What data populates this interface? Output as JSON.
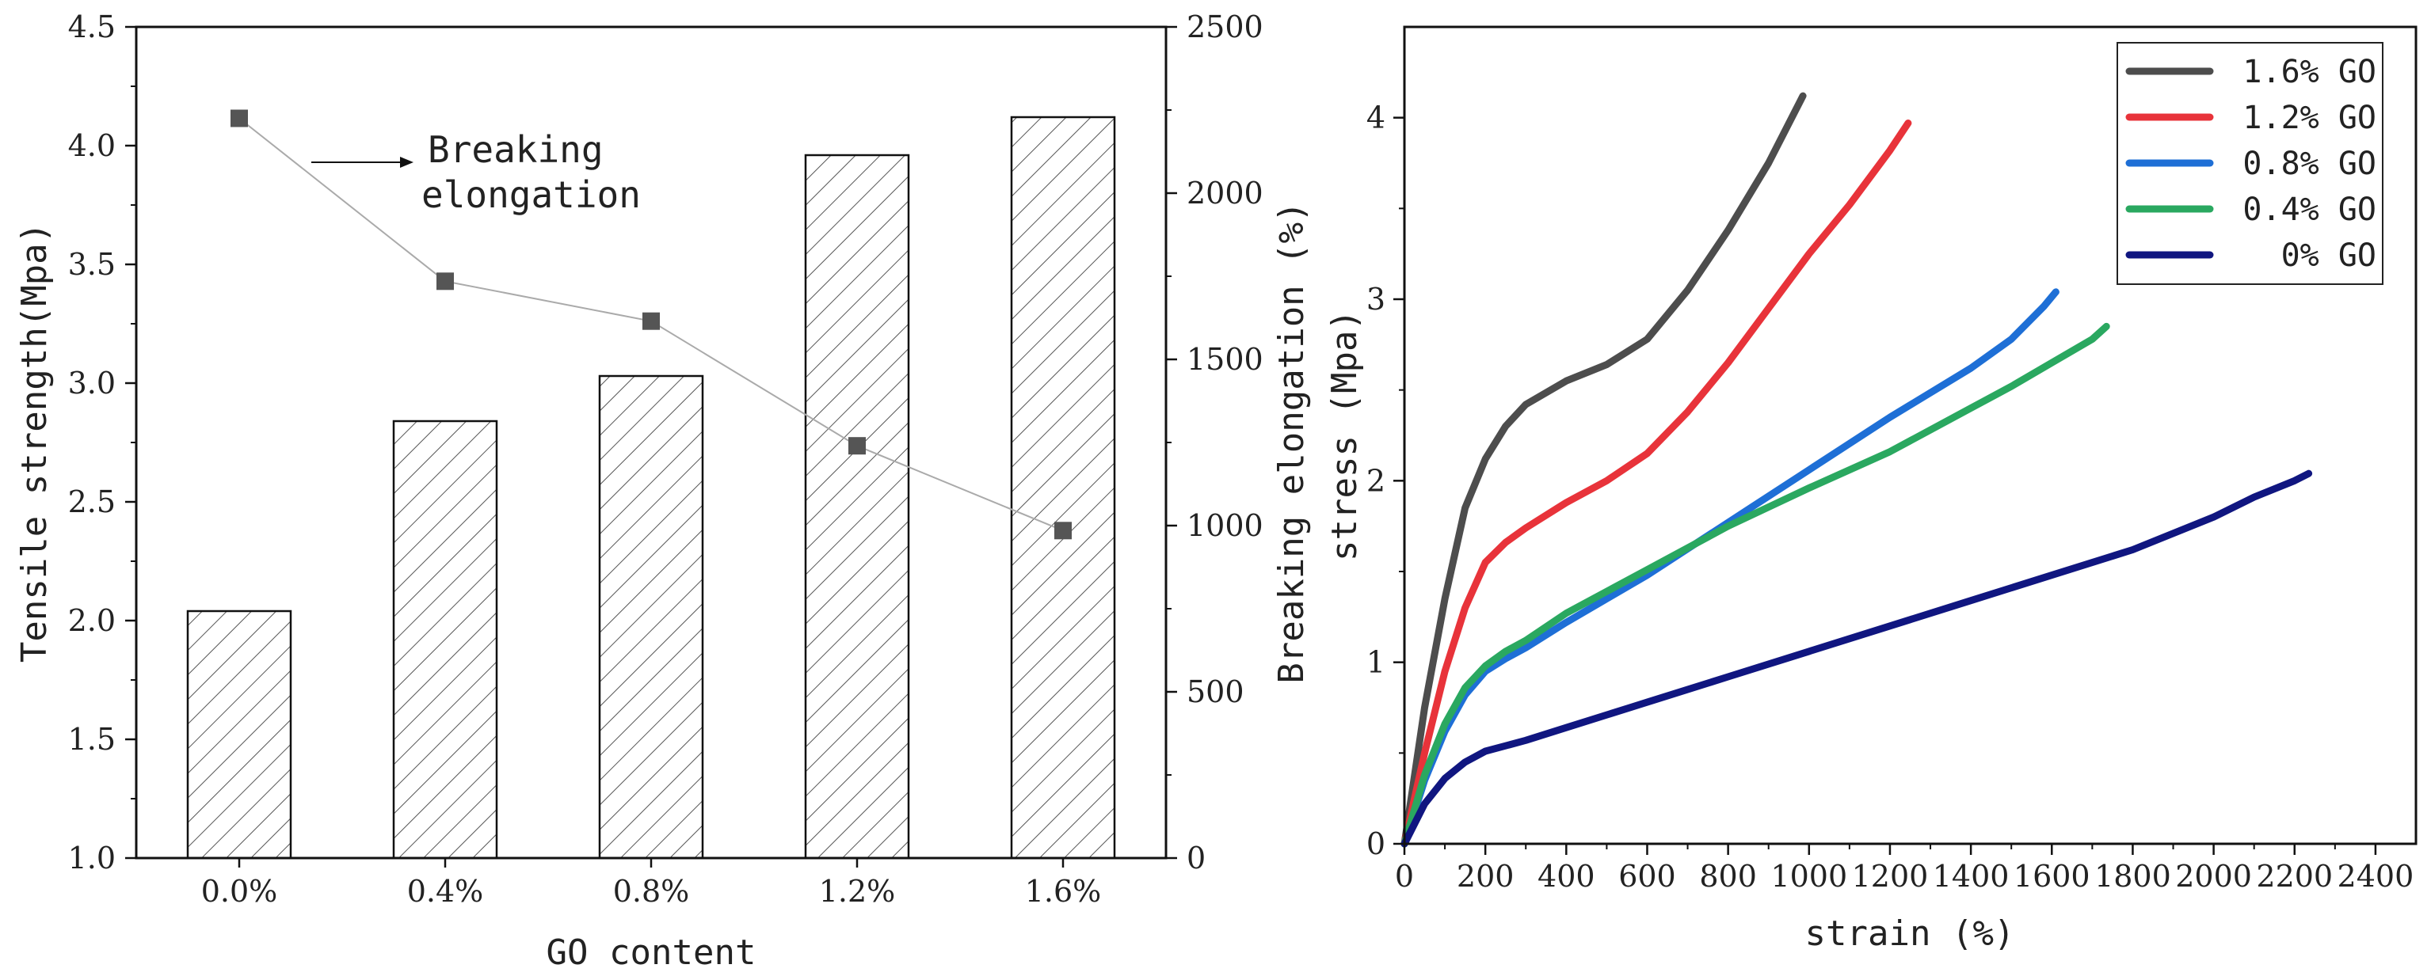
{
  "chart_data": [
    {
      "type": "bar",
      "categories": [
        "0.0%",
        "0.4%",
        "0.8%",
        "1.2%",
        "1.6%"
      ],
      "xlabel": "GO content",
      "ylabel": "Tensile strength(Mpa)",
      "ylim": [
        1.0,
        4.5
      ],
      "yticks": [
        "1.0",
        "1.5",
        "2.0",
        "2.5",
        "3.0",
        "3.5",
        "4.0",
        "4.5"
      ],
      "series": [
        {
          "name": "Tensile strength",
          "axis": "left",
          "kind": "bar-hatched",
          "values": [
            2.04,
            2.84,
            3.03,
            3.96,
            4.12
          ]
        },
        {
          "name": "Breaking elongation",
          "axis": "right",
          "kind": "line-square",
          "values": [
            2225,
            1735,
            1615,
            1240,
            985
          ]
        }
      ],
      "y2label": "Breaking elongation (%)",
      "y2lim": [
        0,
        2500
      ],
      "y2ticks": [
        "0",
        "500",
        "1000",
        "1500",
        "2000",
        "2500"
      ],
      "annotation": {
        "line1": "Breaking",
        "line2": "elongation"
      },
      "colors": {
        "bar_stroke": "#111111",
        "line": "#aaaaaa",
        "marker": "#555555"
      }
    },
    {
      "type": "line",
      "xlabel": "strain (%)",
      "ylabel": "stress (Mpa)",
      "xlim": [
        0,
        2500
      ],
      "ylim": [
        0,
        4.5
      ],
      "xticks": [
        "0",
        "200",
        "400",
        "600",
        "800",
        "1000",
        "1200",
        "1400",
        "1600",
        "1800",
        "2000",
        "2200",
        "2400"
      ],
      "yticks": [
        "0",
        "1",
        "2",
        "3",
        "4"
      ],
      "legend_position": "top-right",
      "series": [
        {
          "name": "1.6% GO",
          "color": "#4d4d4d",
          "x": [
            0,
            50,
            100,
            150,
            200,
            250,
            300,
            400,
            500,
            600,
            700,
            800,
            900,
            985
          ],
          "y": [
            0,
            0.75,
            1.35,
            1.85,
            2.12,
            2.3,
            2.42,
            2.55,
            2.64,
            2.78,
            3.05,
            3.38,
            3.75,
            4.12
          ]
        },
        {
          "name": "1.2% GO",
          "color": "#e8333a",
          "x": [
            0,
            50,
            100,
            150,
            200,
            250,
            300,
            400,
            500,
            600,
            700,
            800,
            900,
            1000,
            1100,
            1200,
            1245
          ],
          "y": [
            0,
            0.5,
            0.95,
            1.3,
            1.55,
            1.66,
            1.74,
            1.88,
            2.0,
            2.15,
            2.38,
            2.65,
            2.95,
            3.25,
            3.52,
            3.82,
            3.97
          ]
        },
        {
          "name": "0.8% GO",
          "color": "#1e6fd6",
          "x": [
            0,
            50,
            100,
            150,
            200,
            250,
            300,
            400,
            500,
            600,
            800,
            1000,
            1200,
            1400,
            1500,
            1580,
            1610
          ],
          "y": [
            0,
            0.35,
            0.62,
            0.82,
            0.95,
            1.02,
            1.08,
            1.22,
            1.35,
            1.48,
            1.77,
            2.06,
            2.35,
            2.62,
            2.78,
            2.96,
            3.04
          ]
        },
        {
          "name": "0.4% GO",
          "color": "#2aa860",
          "x": [
            0,
            50,
            100,
            150,
            200,
            250,
            300,
            400,
            500,
            600,
            800,
            1000,
            1200,
            1400,
            1500,
            1600,
            1700,
            1735
          ],
          "y": [
            0,
            0.38,
            0.66,
            0.86,
            0.98,
            1.06,
            1.12,
            1.27,
            1.39,
            1.51,
            1.75,
            1.96,
            2.16,
            2.4,
            2.52,
            2.65,
            2.78,
            2.85
          ]
        },
        {
          "name": "0% GO",
          "color": "#101680",
          "x": [
            0,
            50,
            100,
            150,
            200,
            250,
            300,
            400,
            600,
            800,
            1000,
            1200,
            1400,
            1600,
            1800,
            2000,
            2100,
            2200,
            2235
          ],
          "y": [
            0,
            0.22,
            0.36,
            0.45,
            0.51,
            0.54,
            0.57,
            0.64,
            0.78,
            0.92,
            1.06,
            1.2,
            1.34,
            1.48,
            1.62,
            1.8,
            1.91,
            2.0,
            2.04
          ]
        }
      ]
    }
  ]
}
